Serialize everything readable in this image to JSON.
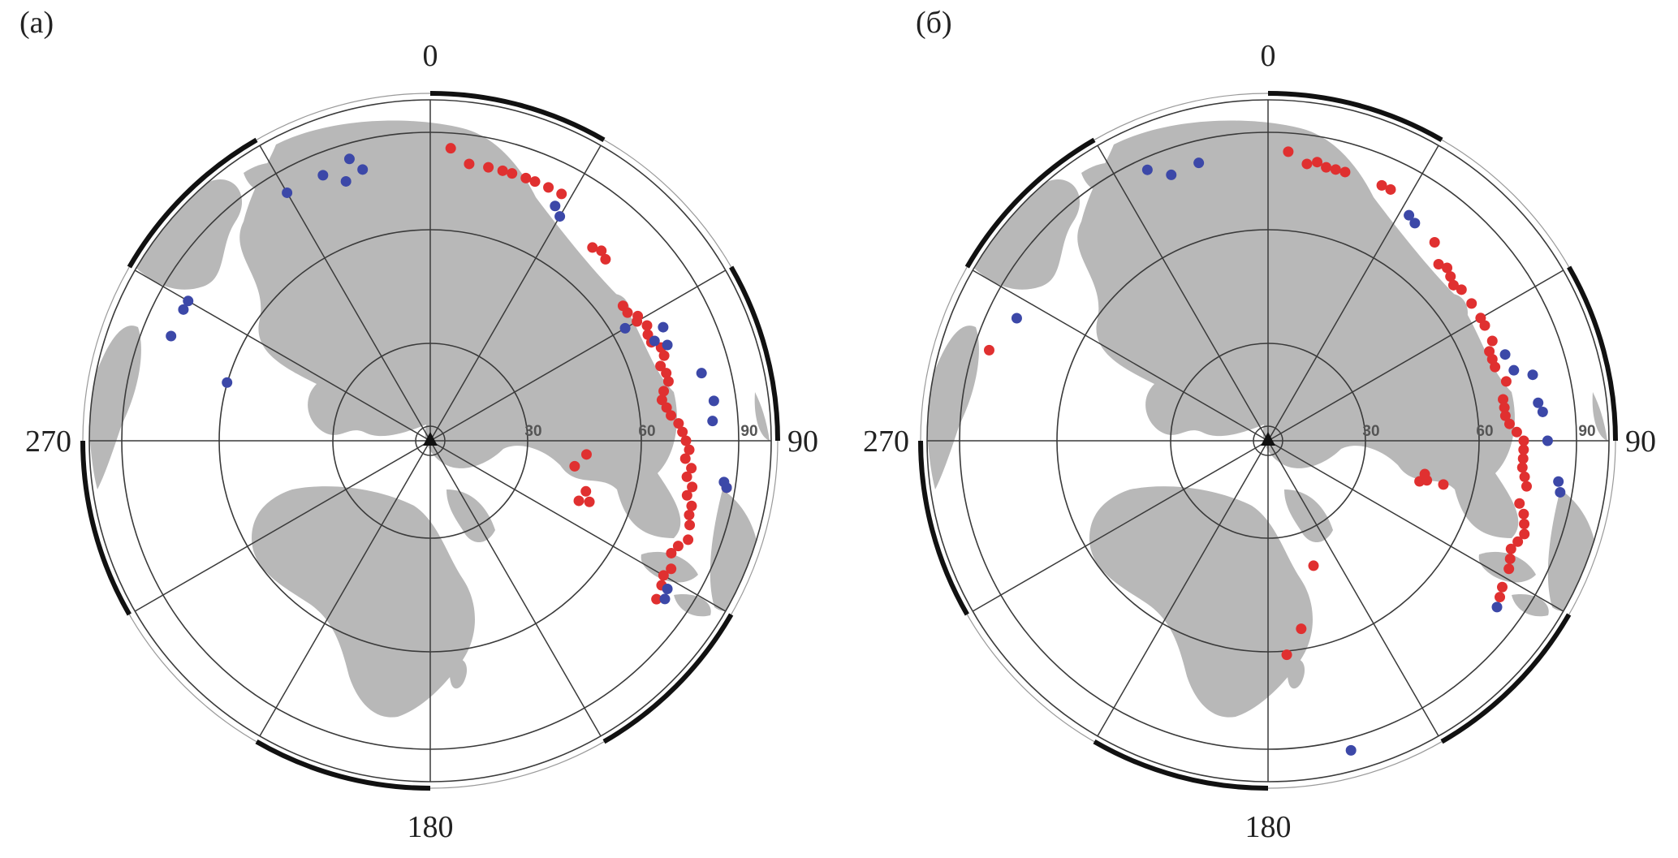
{
  "colors": {
    "land": "#b8b8b8",
    "grid": "#3a3a3a",
    "red_event": "#e03030",
    "blue_event": "#3c48a8",
    "arc": "#111111"
  },
  "azimuth_labels": [
    "0",
    "90",
    "180",
    "270"
  ],
  "distance_labels": [
    "30",
    "60",
    "90"
  ],
  "panels": [
    {
      "label": "(a)",
      "events": {
        "red": [
          [
            4,
            86
          ],
          [
            8,
            82
          ],
          [
            12,
            82
          ],
          [
            15,
            82
          ],
          [
            17,
            82
          ],
          [
            20,
            82
          ],
          [
            22,
            82
          ],
          [
            25,
            82
          ],
          [
            28,
            82
          ],
          [
            40,
            74
          ],
          [
            42,
            75
          ],
          [
            44,
            74
          ],
          [
            55,
            69
          ],
          [
            57,
            69
          ],
          [
            59,
            71
          ],
          [
            60,
            70
          ],
          [
            62,
            72
          ],
          [
            64,
            71
          ],
          [
            66,
            71
          ],
          [
            68,
            73
          ],
          [
            70,
            73
          ],
          [
            72,
            71
          ],
          [
            74,
            72
          ],
          [
            76,
            72
          ],
          [
            78,
            70
          ],
          [
            80,
            69
          ],
          [
            82,
            70
          ],
          [
            84,
            71
          ],
          [
            86,
            73
          ],
          [
            88,
            74
          ],
          [
            90,
            75
          ],
          [
            92,
            76
          ],
          [
            94,
            75
          ],
          [
            96,
            77
          ],
          [
            98,
            76
          ],
          [
            100,
            78
          ],
          [
            102,
            77
          ],
          [
            104,
            79
          ],
          [
            106,
            79
          ],
          [
            108,
            80
          ],
          [
            111,
            81
          ],
          [
            113,
            79
          ],
          [
            115,
            78
          ],
          [
            118,
            80
          ],
          [
            120,
            79
          ],
          [
            122,
            80
          ],
          [
            125,
            81
          ],
          [
            112,
            47
          ],
          [
            108,
            48
          ],
          [
            111,
            50
          ],
          [
            95,
            46
          ],
          [
            100,
            43
          ],
          [
            99,
            88
          ]
        ],
        "blue": [
          [
            28,
            78
          ],
          [
            30,
            76
          ],
          [
            344,
            86
          ],
          [
            346,
            82
          ],
          [
            338,
            84
          ],
          [
            330,
            84
          ],
          [
            342,
            80
          ],
          [
            64,
            76
          ],
          [
            60,
            66
          ],
          [
            66,
            72
          ],
          [
            68,
            75
          ],
          [
            76,
            82
          ],
          [
            82,
            84
          ],
          [
            86,
            83
          ],
          [
            98,
            87
          ],
          [
            99,
            88
          ],
          [
            124,
            83
          ],
          [
            122,
            82
          ],
          [
            300,
            82
          ],
          [
            298,
            82
          ],
          [
            292,
            82
          ],
          [
            286,
            62
          ]
        ]
      }
    },
    {
      "label": "(б)",
      "events": {
        "red": [
          [
            8,
            82
          ],
          [
            10,
            83
          ],
          [
            12,
            82
          ],
          [
            14,
            82
          ],
          [
            16,
            82
          ],
          [
            24,
            82
          ],
          [
            26,
            82
          ],
          [
            40,
            76
          ],
          [
            44,
            72
          ],
          [
            46,
            73
          ],
          [
            48,
            72
          ],
          [
            50,
            71
          ],
          [
            52,
            72
          ],
          [
            56,
            72
          ],
          [
            60,
            72
          ],
          [
            62,
            72
          ],
          [
            66,
            72
          ],
          [
            68,
            70
          ],
          [
            70,
            70
          ],
          [
            72,
            70
          ],
          [
            76,
            72
          ],
          [
            80,
            70
          ],
          [
            82,
            70
          ],
          [
            84,
            70
          ],
          [
            86,
            71
          ],
          [
            88,
            73
          ],
          [
            90,
            75
          ],
          [
            92,
            75
          ],
          [
            94,
            75
          ],
          [
            96,
            75
          ],
          [
            98,
            76
          ],
          [
            100,
            77
          ],
          [
            104,
            76
          ],
          [
            106,
            78
          ],
          [
            108,
            79
          ],
          [
            110,
            80
          ],
          [
            112,
            79
          ],
          [
            114,
            78
          ],
          [
            116,
            79
          ],
          [
            118,
            80
          ],
          [
            122,
            81
          ],
          [
            124,
            82
          ],
          [
            105,
            46
          ],
          [
            104,
            48
          ],
          [
            102,
            47
          ],
          [
            104,
            53
          ],
          [
            160,
            39
          ],
          [
            170,
            56
          ],
          [
            175,
            63
          ],
          [
            288,
            86
          ],
          [
            4,
            85
          ]
        ],
        "blue": [
          [
            336,
            87
          ],
          [
            340,
            83
          ],
          [
            346,
            84
          ],
          [
            32,
            78
          ],
          [
            34,
            77
          ],
          [
            70,
            74
          ],
          [
            74,
            75
          ],
          [
            76,
            80
          ],
          [
            82,
            80
          ],
          [
            84,
            81
          ],
          [
            90,
            82
          ],
          [
            98,
            86
          ],
          [
            100,
            87
          ],
          [
            126,
            83
          ],
          [
            296,
            82
          ],
          [
            165,
            94
          ]
        ]
      }
    }
  ]
}
